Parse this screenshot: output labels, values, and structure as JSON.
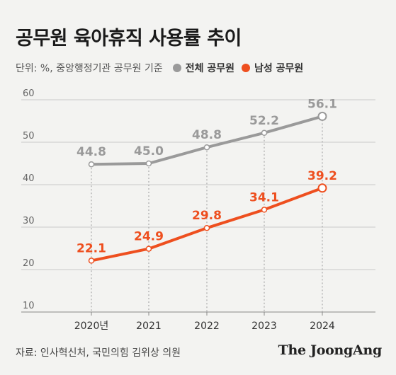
{
  "title": "공무원 육아휴직 사용률 추이",
  "unit_note": "단위: %, 중앙행정기관 공무원 기준",
  "source": "자료: 인사혁신처, 국민의힘 김위상 의원",
  "brand": "The JoongAng",
  "colors": {
    "all": "#9a9a9a",
    "male": "#ee4f1f",
    "axis": "#bdbdbd"
  },
  "chart_data": {
    "type": "line",
    "x": [
      "2020년",
      "2021",
      "2022",
      "2023",
      "2024"
    ],
    "ylim": [
      10,
      60
    ],
    "yticks": [
      10,
      20,
      30,
      40,
      50,
      60
    ],
    "legend_position": "top-left",
    "grid": true,
    "series": [
      {
        "name": "전체 공무원",
        "color": "#9a9a9a",
        "values": [
          44.8,
          45.0,
          48.8,
          52.2,
          56.1
        ]
      },
      {
        "name": "남성 공무원",
        "color": "#ee4f1f",
        "values": [
          22.1,
          24.9,
          29.8,
          34.1,
          39.2
        ]
      }
    ]
  }
}
